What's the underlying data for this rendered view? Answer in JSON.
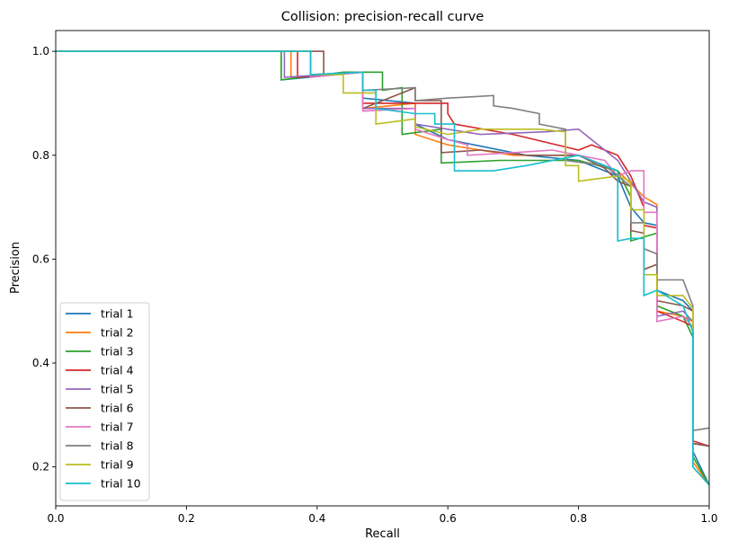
{
  "chart_data": {
    "type": "line",
    "title": "Collision: precision-recall curve",
    "xlabel": "Recall",
    "ylabel": "Precision",
    "xlim": [
      0,
      1
    ],
    "ylim": [
      0.125,
      1.04
    ],
    "xticks": [
      "0.0",
      "0.2",
      "0.4",
      "0.6",
      "0.8",
      "1.0"
    ],
    "xtick_values": [
      0,
      0.2,
      0.4,
      0.6,
      0.8,
      1.0
    ],
    "yticks": [
      "0.2",
      "0.4",
      "0.6",
      "0.8",
      "1.0"
    ],
    "ytick_values": [
      0.2,
      0.4,
      0.6,
      0.8,
      1.0
    ],
    "grid": false,
    "legend_position": "lower-left",
    "series": [
      {
        "name": "trial 1",
        "color": "#1f77b4",
        "points": [
          [
            0,
            1.0
          ],
          [
            0.345,
            1.0
          ],
          [
            0.345,
            0.945
          ],
          [
            0.47,
            0.96
          ],
          [
            0.47,
            0.91
          ],
          [
            0.55,
            0.9
          ],
          [
            0.55,
            0.86
          ],
          [
            0.6,
            0.83
          ],
          [
            0.72,
            0.8
          ],
          [
            0.8,
            0.79
          ],
          [
            0.86,
            0.76
          ],
          [
            0.88,
            0.7
          ],
          [
            0.9,
            0.67
          ],
          [
            0.92,
            0.665
          ],
          [
            0.92,
            0.54
          ],
          [
            0.96,
            0.52
          ],
          [
            0.975,
            0.5
          ],
          [
            0.975,
            0.23
          ],
          [
            1.0,
            0.165
          ]
        ]
      },
      {
        "name": "trial 2",
        "color": "#ff7f0e",
        "points": [
          [
            0,
            1.0
          ],
          [
            0.36,
            1.0
          ],
          [
            0.36,
            0.95
          ],
          [
            0.47,
            0.96
          ],
          [
            0.47,
            0.89
          ],
          [
            0.55,
            0.9
          ],
          [
            0.55,
            0.84
          ],
          [
            0.6,
            0.82
          ],
          [
            0.7,
            0.8
          ],
          [
            0.8,
            0.8
          ],
          [
            0.86,
            0.77
          ],
          [
            0.9,
            0.72
          ],
          [
            0.92,
            0.705
          ],
          [
            0.92,
            0.5
          ],
          [
            0.96,
            0.49
          ],
          [
            0.975,
            0.48
          ],
          [
            0.975,
            0.21
          ],
          [
            1.0,
            0.165
          ]
        ]
      },
      {
        "name": "trial 3",
        "color": "#2ca02c",
        "points": [
          [
            0,
            1.0
          ],
          [
            0.345,
            1.0
          ],
          [
            0.345,
            0.945
          ],
          [
            0.44,
            0.96
          ],
          [
            0.5,
            0.96
          ],
          [
            0.5,
            0.925
          ],
          [
            0.53,
            0.93
          ],
          [
            0.53,
            0.84
          ],
          [
            0.59,
            0.85
          ],
          [
            0.59,
            0.785
          ],
          [
            0.68,
            0.79
          ],
          [
            0.8,
            0.79
          ],
          [
            0.86,
            0.77
          ],
          [
            0.88,
            0.72
          ],
          [
            0.88,
            0.635
          ],
          [
            0.92,
            0.65
          ],
          [
            0.92,
            0.51
          ],
          [
            0.96,
            0.49
          ],
          [
            0.975,
            0.45
          ],
          [
            0.975,
            0.22
          ],
          [
            1.0,
            0.165
          ]
        ]
      },
      {
        "name": "trial 4",
        "color": "#d62728",
        "points": [
          [
            0,
            1.0
          ],
          [
            0.37,
            1.0
          ],
          [
            0.37,
            0.95
          ],
          [
            0.47,
            0.96
          ],
          [
            0.47,
            0.9
          ],
          [
            0.55,
            0.9
          ],
          [
            0.6,
            0.9
          ],
          [
            0.6,
            0.88
          ],
          [
            0.61,
            0.86
          ],
          [
            0.7,
            0.84
          ],
          [
            0.8,
            0.81
          ],
          [
            0.82,
            0.82
          ],
          [
            0.86,
            0.8
          ],
          [
            0.88,
            0.76
          ],
          [
            0.9,
            0.7
          ],
          [
            0.9,
            0.665
          ],
          [
            0.92,
            0.66
          ],
          [
            0.92,
            0.5
          ],
          [
            0.96,
            0.48
          ],
          [
            0.975,
            0.47
          ],
          [
            0.975,
            0.25
          ],
          [
            1.0,
            0.24
          ]
        ]
      },
      {
        "name": "trial 5",
        "color": "#9467bd",
        "points": [
          [
            0,
            1.0
          ],
          [
            0.35,
            1.0
          ],
          [
            0.35,
            0.95
          ],
          [
            0.47,
            0.96
          ],
          [
            0.47,
            0.89
          ],
          [
            0.55,
            0.89
          ],
          [
            0.55,
            0.86
          ],
          [
            0.65,
            0.84
          ],
          [
            0.75,
            0.845
          ],
          [
            0.8,
            0.85
          ],
          [
            0.82,
            0.83
          ],
          [
            0.86,
            0.79
          ],
          [
            0.88,
            0.75
          ],
          [
            0.9,
            0.71
          ],
          [
            0.92,
            0.7
          ],
          [
            0.92,
            0.49
          ],
          [
            0.96,
            0.5
          ],
          [
            0.975,
            0.48
          ],
          [
            0.975,
            0.245
          ],
          [
            1.0,
            0.24
          ]
        ]
      },
      {
        "name": "trial 6",
        "color": "#8c564b",
        "points": [
          [
            0,
            1.0
          ],
          [
            0.41,
            1.0
          ],
          [
            0.41,
            0.955
          ],
          [
            0.47,
            0.96
          ],
          [
            0.47,
            0.89
          ],
          [
            0.55,
            0.93
          ],
          [
            0.55,
            0.905
          ],
          [
            0.59,
            0.905
          ],
          [
            0.59,
            0.805
          ],
          [
            0.65,
            0.81
          ],
          [
            0.72,
            0.8
          ],
          [
            0.8,
            0.8
          ],
          [
            0.84,
            0.775
          ],
          [
            0.86,
            0.75
          ],
          [
            0.88,
            0.74
          ],
          [
            0.88,
            0.655
          ],
          [
            0.9,
            0.65
          ],
          [
            0.9,
            0.58
          ],
          [
            0.92,
            0.59
          ],
          [
            0.92,
            0.52
          ],
          [
            0.96,
            0.51
          ],
          [
            0.975,
            0.5
          ],
          [
            0.975,
            0.245
          ],
          [
            1.0,
            0.24
          ]
        ]
      },
      {
        "name": "trial 7",
        "color": "#e377c2",
        "points": [
          [
            0,
            1.0
          ],
          [
            0.39,
            1.0
          ],
          [
            0.39,
            0.95
          ],
          [
            0.47,
            0.96
          ],
          [
            0.47,
            0.885
          ],
          [
            0.55,
            0.89
          ],
          [
            0.55,
            0.85
          ],
          [
            0.6,
            0.83
          ],
          [
            0.63,
            0.82
          ],
          [
            0.63,
            0.8
          ],
          [
            0.7,
            0.805
          ],
          [
            0.76,
            0.81
          ],
          [
            0.8,
            0.8
          ],
          [
            0.84,
            0.79
          ],
          [
            0.86,
            0.76
          ],
          [
            0.88,
            0.77
          ],
          [
            0.9,
            0.77
          ],
          [
            0.9,
            0.69
          ],
          [
            0.92,
            0.69
          ],
          [
            0.92,
            0.48
          ],
          [
            0.96,
            0.49
          ],
          [
            0.975,
            0.47
          ],
          [
            0.975,
            0.2
          ],
          [
            1.0,
            0.165
          ]
        ]
      },
      {
        "name": "trial 8",
        "color": "#7f7f7f",
        "points": [
          [
            0,
            1.0
          ],
          [
            0.39,
            1.0
          ],
          [
            0.39,
            0.955
          ],
          [
            0.47,
            0.96
          ],
          [
            0.47,
            0.925
          ],
          [
            0.55,
            0.93
          ],
          [
            0.55,
            0.905
          ],
          [
            0.6,
            0.91
          ],
          [
            0.67,
            0.915
          ],
          [
            0.67,
            0.895
          ],
          [
            0.7,
            0.89
          ],
          [
            0.74,
            0.88
          ],
          [
            0.74,
            0.86
          ],
          [
            0.78,
            0.85
          ],
          [
            0.78,
            0.79
          ],
          [
            0.84,
            0.78
          ],
          [
            0.86,
            0.76
          ],
          [
            0.88,
            0.74
          ],
          [
            0.88,
            0.67
          ],
          [
            0.9,
            0.67
          ],
          [
            0.9,
            0.62
          ],
          [
            0.92,
            0.61
          ],
          [
            0.92,
            0.56
          ],
          [
            0.96,
            0.56
          ],
          [
            0.975,
            0.51
          ],
          [
            0.975,
            0.27
          ],
          [
            1.0,
            0.275
          ]
        ]
      },
      {
        "name": "trial 9",
        "color": "#bcbd22",
        "points": [
          [
            0,
            1.0
          ],
          [
            0.39,
            1.0
          ],
          [
            0.39,
            0.955
          ],
          [
            0.44,
            0.955
          ],
          [
            0.44,
            0.92
          ],
          [
            0.49,
            0.92
          ],
          [
            0.49,
            0.86
          ],
          [
            0.55,
            0.87
          ],
          [
            0.55,
            0.855
          ],
          [
            0.6,
            0.84
          ],
          [
            0.65,
            0.85
          ],
          [
            0.7,
            0.85
          ],
          [
            0.74,
            0.85
          ],
          [
            0.78,
            0.845
          ],
          [
            0.78,
            0.78
          ],
          [
            0.8,
            0.78
          ],
          [
            0.8,
            0.75
          ],
          [
            0.86,
            0.76
          ],
          [
            0.88,
            0.75
          ],
          [
            0.88,
            0.695
          ],
          [
            0.9,
            0.695
          ],
          [
            0.9,
            0.57
          ],
          [
            0.92,
            0.57
          ],
          [
            0.92,
            0.53
          ],
          [
            0.96,
            0.53
          ],
          [
            0.975,
            0.505
          ],
          [
            0.975,
            0.2
          ],
          [
            1.0,
            0.165
          ]
        ]
      },
      {
        "name": "trial 10",
        "color": "#17becf",
        "points": [
          [
            0,
            1.0
          ],
          [
            0.39,
            1.0
          ],
          [
            0.39,
            0.955
          ],
          [
            0.47,
            0.96
          ],
          [
            0.47,
            0.925
          ],
          [
            0.49,
            0.925
          ],
          [
            0.49,
            0.89
          ],
          [
            0.55,
            0.88
          ],
          [
            0.58,
            0.88
          ],
          [
            0.58,
            0.86
          ],
          [
            0.61,
            0.86
          ],
          [
            0.61,
            0.77
          ],
          [
            0.67,
            0.77
          ],
          [
            0.72,
            0.78
          ],
          [
            0.8,
            0.8
          ],
          [
            0.84,
            0.78
          ],
          [
            0.86,
            0.77
          ],
          [
            0.86,
            0.635
          ],
          [
            0.88,
            0.64
          ],
          [
            0.9,
            0.64
          ],
          [
            0.9,
            0.53
          ],
          [
            0.92,
            0.54
          ],
          [
            0.96,
            0.51
          ],
          [
            0.975,
            0.46
          ],
          [
            0.975,
            0.2
          ],
          [
            1.0,
            0.165
          ]
        ]
      }
    ]
  }
}
